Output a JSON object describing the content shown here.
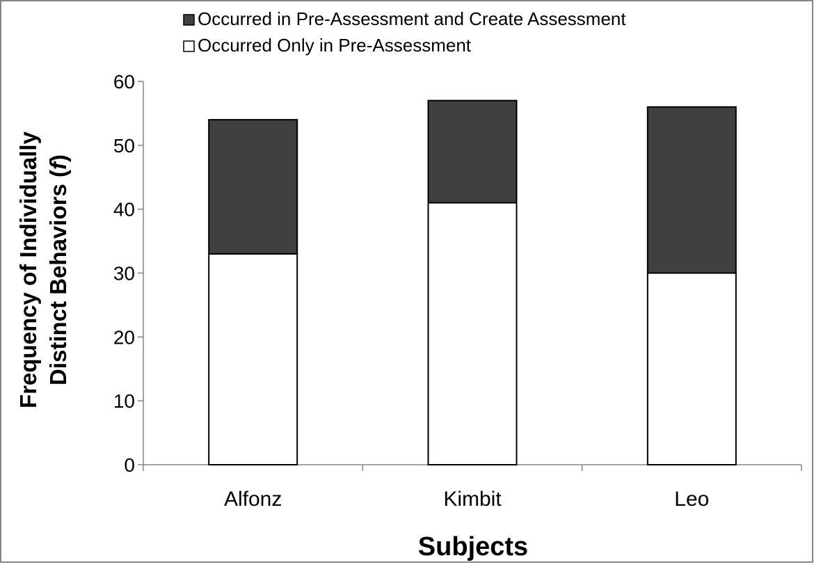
{
  "chart_data": {
    "type": "bar",
    "stacked": true,
    "categories": [
      "Alfonz",
      "Kimbit",
      "Leo"
    ],
    "series": [
      {
        "name": "Occurred Only in Pre-Assessment",
        "values": [
          33,
          41,
          30
        ],
        "color": "#ffffff"
      },
      {
        "name": "Occurred in Pre-Assessment and Create Assessment",
        "values": [
          21,
          16,
          26
        ],
        "color": "#404040"
      }
    ],
    "legend_order": [
      1,
      0
    ],
    "legend_position": "top",
    "xlabel": "Subjects",
    "ylabel_line1": "Frequency of Individually",
    "ylabel_line2_main": "Distinct Behaviors (",
    "ylabel_line2_italic": "f",
    "ylabel_line2_end": ")",
    "ylim": [
      0,
      60
    ],
    "yticks": [
      0,
      10,
      20,
      30,
      40,
      50,
      60
    ],
    "grid": false,
    "colors": {
      "axis": "#868686",
      "bar_stroke": "#000000",
      "frame": "#868686",
      "text": "#000000"
    }
  }
}
